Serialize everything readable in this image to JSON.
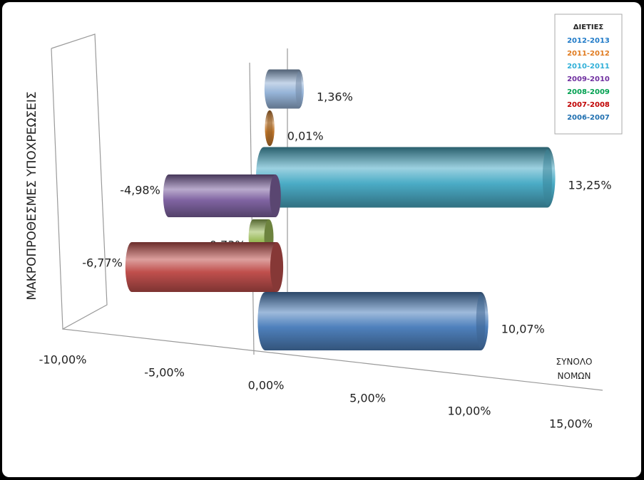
{
  "chart_data": {
    "type": "bar3d",
    "y_axis_label": "ΜΑΚΡΟΠΡΟΘΕΣΜΕΣ ΥΠΟΧΡΕΩΣΕΙΣ",
    "categories": [
      "ΣΥΝΟΛΟ ΝΟΜΩΝ"
    ],
    "legend_title": "ΔΙΕΤΙΕΣ",
    "legend_position": "top-right",
    "series": [
      {
        "name": "2012-2013",
        "color": "#95b3d7",
        "legend_color": "#1f7ac8",
        "values": [
          1.36
        ],
        "value_labels": [
          "1,36%"
        ]
      },
      {
        "name": "2011-2012",
        "color": "#c0772c",
        "legend_color": "#e07b20",
        "values": [
          0.01
        ],
        "value_labels": [
          "0,01%"
        ]
      },
      {
        "name": "2010-2011",
        "color": "#4bacc6",
        "legend_color": "#31b0d8",
        "values": [
          13.25
        ],
        "value_labels": [
          "13,25%"
        ]
      },
      {
        "name": "2009-2010",
        "color": "#8064a2",
        "legend_color": "#7030a0",
        "values": [
          -4.98
        ],
        "value_labels": [
          "-4,98%"
        ]
      },
      {
        "name": "2008-2009",
        "color": "#9bbb59",
        "legend_color": "#00a050",
        "values": [
          -0.73
        ],
        "value_labels": [
          "-0,73%"
        ]
      },
      {
        "name": "2007-2008",
        "color": "#c0504d",
        "legend_color": "#c00000",
        "values": [
          -6.77
        ],
        "value_labels": [
          "-6,77%"
        ]
      },
      {
        "name": "2006-2007",
        "color": "#4f81bd",
        "legend_color": "#1f6fb0",
        "values": [
          10.07
        ],
        "value_labels": [
          "10,07%"
        ]
      }
    ],
    "xlim": [
      -10,
      15
    ],
    "xticks": [
      {
        "value": -10,
        "label": "-10,00%"
      },
      {
        "value": -5,
        "label": "-5,00%"
      },
      {
        "value": 0,
        "label": "0,00%"
      },
      {
        "value": 5,
        "label": "5,00%"
      },
      {
        "value": 10,
        "label": "10,00%"
      },
      {
        "value": 15,
        "label": "15,00%"
      }
    ]
  }
}
